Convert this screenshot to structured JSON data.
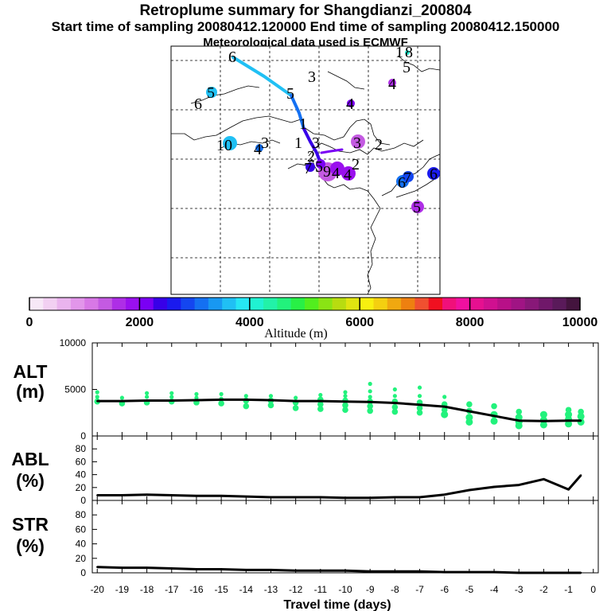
{
  "titles": {
    "main": "Retroplume summary for Shangdianzi_200804",
    "sampling": "Start time of sampling 20080412.120000     End time of sampling 20080412.150000",
    "meteo": "Meteorological data used is ECMWF"
  },
  "colorbar": {
    "label": "Altitude (m)",
    "ticks": [
      "0",
      "2000",
      "4000",
      "6000",
      "8000",
      "10000"
    ],
    "colors": [
      "#f7e8f7",
      "#f2d0f2",
      "#eab4ee",
      "#e296ea",
      "#d878e6",
      "#c45ae2",
      "#ae2ee6",
      "#9a10ee",
      "#7a00f4",
      "#3800e8",
      "#1a1aee",
      "#1446f0",
      "#1470f2",
      "#1898f2",
      "#20c0f4",
      "#26e6f4",
      "#20f2d2",
      "#22f2a8",
      "#22f27c",
      "#28f046",
      "#52ee1e",
      "#8ae414",
      "#b8dc10",
      "#e0e410",
      "#f8f010",
      "#f4d010",
      "#f0a810",
      "#ee8010",
      "#f05030",
      "#f01020",
      "#f0107a",
      "#f010a0",
      "#e61090",
      "#d01090",
      "#b81088",
      "#a01484",
      "#881878",
      "#70186a",
      "#5a1a5a",
      "#44143e"
    ]
  },
  "map": {
    "labels": [
      {
        "text": "6",
        "color": "#20d0e6"
      },
      {
        "text": "5",
        "color": "#20c0e0"
      },
      {
        "text": "6",
        "color": "#20d0e6"
      },
      {
        "text": "5",
        "color": "#1898f2"
      },
      {
        "text": "3",
        "color": "#1a1aee"
      },
      {
        "text": "4",
        "color": "#9a10ee"
      },
      {
        "text": "10",
        "color": "#20c0f4"
      },
      {
        "text": "4",
        "color": "#1470f2"
      },
      {
        "text": "3",
        "color": "#1470f2"
      },
      {
        "text": "1",
        "color": "#1a1aee"
      },
      {
        "text": "3",
        "color": "#3800e8"
      },
      {
        "text": "2",
        "color": "#9a10ee"
      },
      {
        "text": "3",
        "color": "#c45ae2"
      },
      {
        "text": "2",
        "color": "#d878e6"
      },
      {
        "text": "2",
        "color": "#ae2ee6"
      },
      {
        "text": "4",
        "color": "#ae2ee6"
      },
      {
        "text": "7",
        "color": "#3800e8"
      },
      {
        "text": "9",
        "color": "#9a10ee"
      },
      {
        "text": "5",
        "color": "#c45ae2"
      },
      {
        "text": "4",
        "color": "#9a10ee"
      },
      {
        "text": "5",
        "color": "#c45ae2"
      },
      {
        "text": "6",
        "color": "#1470f2"
      },
      {
        "text": "7",
        "color": "#1446f0"
      },
      {
        "text": "6",
        "color": "#3800e8"
      },
      {
        "text": "5",
        "color": "#ae2ee6"
      },
      {
        "text": "1",
        "color": "#20f2d2"
      },
      {
        "text": "8",
        "color": "#20f2d2"
      },
      {
        "text": "4",
        "color": "#9a10ee"
      },
      {
        "text": "1",
        "color": "#1a1aee"
      }
    ]
  },
  "chart_data": [
    {
      "type": "line",
      "title": "ALT (m)",
      "panel_label": "ALT",
      "panel_unit": "(m)",
      "xlabel": "Travel time (days)",
      "xlim": [
        -20.2,
        0.2
      ],
      "ylim": [
        0,
        10000
      ],
      "yticks": [
        "10000",
        "5000",
        "0"
      ],
      "ytick_values": [
        10000,
        5000,
        0
      ],
      "x": [
        -20,
        -19,
        -18,
        -17,
        -16,
        -15,
        -14,
        -13,
        -12,
        -11,
        -10,
        -9,
        -8,
        -7,
        -6,
        -5,
        -4,
        -3,
        -2,
        -1,
        -0.5
      ],
      "values": [
        3750,
        3750,
        3800,
        3800,
        3850,
        3900,
        3900,
        3850,
        3750,
        3750,
        3700,
        3650,
        3550,
        3350,
        3150,
        2650,
        2150,
        1650,
        1600,
        1650,
        1650
      ],
      "scatter_color": "#22f27c",
      "scatter": [
        [
          -20,
          3700
        ],
        [
          -20,
          4200
        ],
        [
          -20,
          4700
        ],
        [
          -19,
          3500
        ],
        [
          -19,
          4100
        ],
        [
          -18,
          3600
        ],
        [
          -18,
          4200
        ],
        [
          -18,
          4600
        ],
        [
          -17,
          3700
        ],
        [
          -17,
          4200
        ],
        [
          -17,
          4600
        ],
        [
          -16,
          3600
        ],
        [
          -16,
          4100
        ],
        [
          -16,
          4500
        ],
        [
          -15,
          3500
        ],
        [
          -15,
          4000
        ],
        [
          -15,
          4500
        ],
        [
          -14,
          3200
        ],
        [
          -14,
          3800
        ],
        [
          -14,
          4300
        ],
        [
          -13,
          3300
        ],
        [
          -13,
          3800
        ],
        [
          -13,
          4300
        ],
        [
          -12,
          3000
        ],
        [
          -12,
          3600
        ],
        [
          -12,
          4100
        ],
        [
          -11,
          2900
        ],
        [
          -11,
          3400
        ],
        [
          -11,
          3900
        ],
        [
          -11,
          4400
        ],
        [
          -10,
          2800
        ],
        [
          -10,
          3300
        ],
        [
          -10,
          3800
        ],
        [
          -10,
          4300
        ],
        [
          -10,
          4700
        ],
        [
          -9,
          2700
        ],
        [
          -9,
          3200
        ],
        [
          -9,
          3700
        ],
        [
          -9,
          4200
        ],
        [
          -9,
          4800
        ],
        [
          -9,
          5600
        ],
        [
          -8,
          2600
        ],
        [
          -8,
          3100
        ],
        [
          -8,
          3700
        ],
        [
          -8,
          4300
        ],
        [
          -8,
          5000
        ],
        [
          -7,
          2500
        ],
        [
          -7,
          3000
        ],
        [
          -7,
          3600
        ],
        [
          -7,
          4300
        ],
        [
          -7,
          5200
        ],
        [
          -6,
          2300
        ],
        [
          -6,
          2800
        ],
        [
          -6,
          3400
        ],
        [
          -6,
          4200
        ],
        [
          -5,
          1500
        ],
        [
          -5,
          2000
        ],
        [
          -5,
          2700
        ],
        [
          -5,
          3400
        ],
        [
          -4,
          1600
        ],
        [
          -4,
          2300
        ],
        [
          -4,
          3200
        ],
        [
          -3,
          1100
        ],
        [
          -3,
          1500
        ],
        [
          -3,
          2000
        ],
        [
          -3,
          2600
        ],
        [
          -2,
          1200
        ],
        [
          -2,
          1700
        ],
        [
          -2,
          2300
        ],
        [
          -1,
          1300
        ],
        [
          -1,
          1800
        ],
        [
          -1,
          2300
        ],
        [
          -1,
          2800
        ],
        [
          -0.5,
          1500
        ],
        [
          -0.5,
          2100
        ],
        [
          -0.5,
          2600
        ]
      ]
    },
    {
      "type": "line",
      "title": "ABL (%)",
      "panel_label": "ABL",
      "panel_unit": "(%)",
      "xlim": [
        -20.2,
        0.2
      ],
      "ylim": [
        0,
        100
      ],
      "yticks": [
        "80",
        "60",
        "40",
        "20",
        "0"
      ],
      "ytick_values": [
        80,
        60,
        40,
        20,
        0
      ],
      "x": [
        -20,
        -19,
        -18,
        -17,
        -16,
        -15,
        -14,
        -13,
        -12,
        -11,
        -10,
        -9,
        -8,
        -7,
        -6,
        -5,
        -4,
        -3,
        -2,
        -1,
        -0.5
      ],
      "values": [
        8,
        8,
        9,
        8,
        7,
        7,
        6,
        5,
        5,
        5,
        4,
        4,
        5,
        5,
        9,
        16,
        21,
        24,
        33,
        17,
        39
      ]
    },
    {
      "type": "line",
      "title": "STR (%)",
      "panel_label": "STR",
      "panel_unit": "(%)",
      "xlim": [
        -20.2,
        0.2
      ],
      "ylim": [
        0,
        100
      ],
      "yticks": [
        "80",
        "60",
        "40",
        "20",
        "0"
      ],
      "ytick_values": [
        80,
        60,
        40,
        20,
        0
      ],
      "x": [
        -20,
        -19,
        -18,
        -17,
        -16,
        -15,
        -14,
        -13,
        -12,
        -11,
        -10,
        -9,
        -8,
        -7,
        -6,
        -5,
        -4,
        -3,
        -2,
        -1,
        -0.5
      ],
      "values": [
        8,
        7,
        7,
        6,
        5,
        5,
        4,
        4,
        3,
        3,
        3,
        2,
        2,
        2,
        1,
        1,
        1,
        0,
        0,
        0,
        0
      ],
      "xtick_labels": [
        "-20",
        "-19",
        "-18",
        "-17",
        "-16",
        "-15",
        "-14",
        "-13",
        "-12",
        "-11",
        "-10",
        "-9",
        "-8",
        "-7",
        "-6",
        "-5",
        "-4",
        "-3",
        "-2",
        "-1",
        "0"
      ],
      "xtick_values": [
        -20,
        -19,
        -18,
        -17,
        -16,
        -15,
        -14,
        -13,
        -12,
        -11,
        -10,
        -9,
        -8,
        -7,
        -6,
        -5,
        -4,
        -3,
        -2,
        -1,
        0
      ]
    }
  ]
}
